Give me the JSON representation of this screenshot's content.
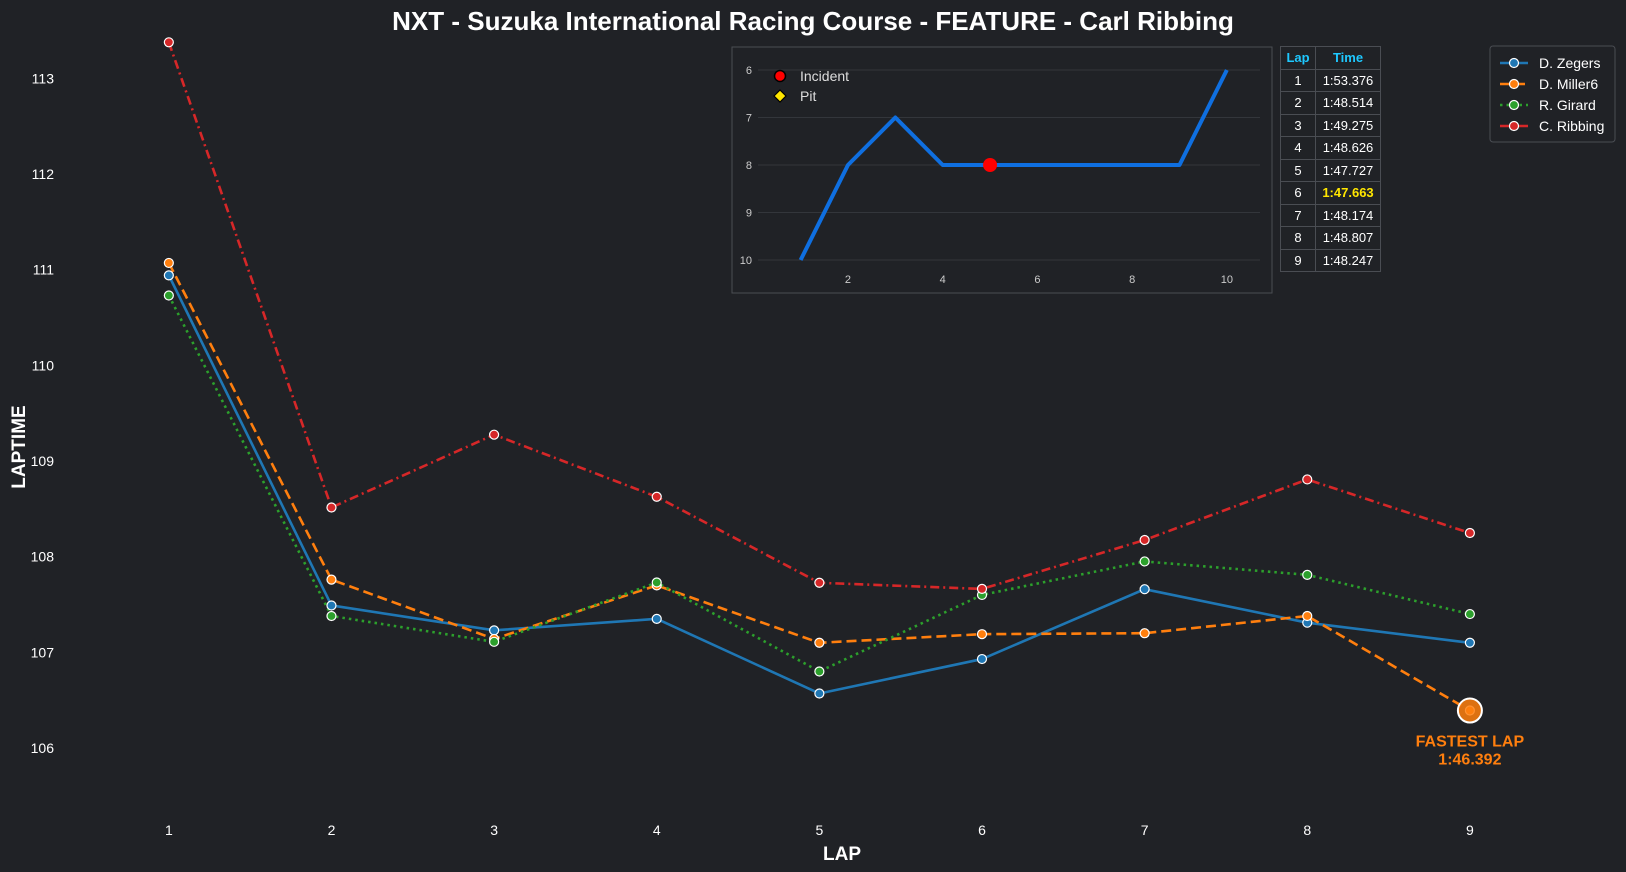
{
  "chart_data": {
    "type": "line",
    "title": "NXT - Suzuka International Racing Course - FEATURE - Carl Ribbing",
    "xlabel": "LAP",
    "ylabel": "LAPTIME",
    "x": [
      1,
      2,
      3,
      4,
      5,
      6,
      7,
      8,
      9
    ],
    "xlim": [
      0.3,
      9.8
    ],
    "ylim": [
      105.3,
      113.4
    ],
    "yticks": [
      106,
      107,
      108,
      109,
      110,
      111,
      112,
      113
    ],
    "grid": false,
    "legend": "top-right",
    "series": [
      {
        "name": "D. Zegers",
        "color": "#1f77b4",
        "dash": "solid",
        "values": [
          110.94,
          107.49,
          107.23,
          107.35,
          106.57,
          106.93,
          107.66,
          107.31,
          107.1
        ]
      },
      {
        "name": "D. Miller6",
        "color": "#ff7f0e",
        "dash": "dashed",
        "values": [
          111.07,
          107.76,
          107.14,
          107.7,
          107.1,
          107.19,
          107.2,
          107.38,
          106.392
        ]
      },
      {
        "name": "R. Girard",
        "color": "#2ca02c",
        "dash": "dotted",
        "values": [
          110.73,
          107.38,
          107.11,
          107.73,
          106.8,
          107.6,
          107.95,
          107.81,
          107.4
        ]
      },
      {
        "name": "C. Ribbing",
        "color": "#d62728",
        "dash": "dashdot",
        "values": [
          113.376,
          108.514,
          109.275,
          108.626,
          107.727,
          107.663,
          108.174,
          108.807,
          108.247
        ]
      }
    ],
    "fastest_lap": {
      "lap": 9,
      "value": 106.392,
      "label_line1": "FASTEST LAP",
      "label_line2": "1:46.392",
      "color": "#ff7f0e"
    },
    "inset": {
      "type": "line",
      "x": [
        1,
        2,
        3,
        4,
        5,
        6,
        7,
        8,
        9,
        10
      ],
      "values": [
        10,
        8,
        7,
        8,
        8,
        8,
        8,
        8,
        8,
        6
      ],
      "xlim": [
        0.1,
        10.7
      ],
      "ylim": [
        10.0,
        6.0
      ],
      "xticks": [
        2,
        4,
        6,
        8,
        10
      ],
      "yticks": [
        6,
        7,
        8,
        9,
        10
      ],
      "color": "#0f6fe0",
      "incident_laps": [
        5
      ],
      "pit_laps": [],
      "legend": [
        {
          "label": "Incident",
          "color": "#ff0000",
          "marker": "circle"
        },
        {
          "label": "Pit",
          "color": "#ffe600",
          "marker": "diamond"
        }
      ]
    },
    "lap_table": {
      "headers": [
        "Lap",
        "Time"
      ],
      "rows": [
        [
          "1",
          "1:53.376"
        ],
        [
          "2",
          "1:48.514"
        ],
        [
          "3",
          "1:49.275"
        ],
        [
          "4",
          "1:48.626"
        ],
        [
          "5",
          "1:47.727"
        ],
        [
          "6",
          "1:47.663"
        ],
        [
          "7",
          "1:48.174"
        ],
        [
          "8",
          "1:48.807"
        ],
        [
          "9",
          "1:48.247"
        ]
      ],
      "best_row": 5
    }
  }
}
